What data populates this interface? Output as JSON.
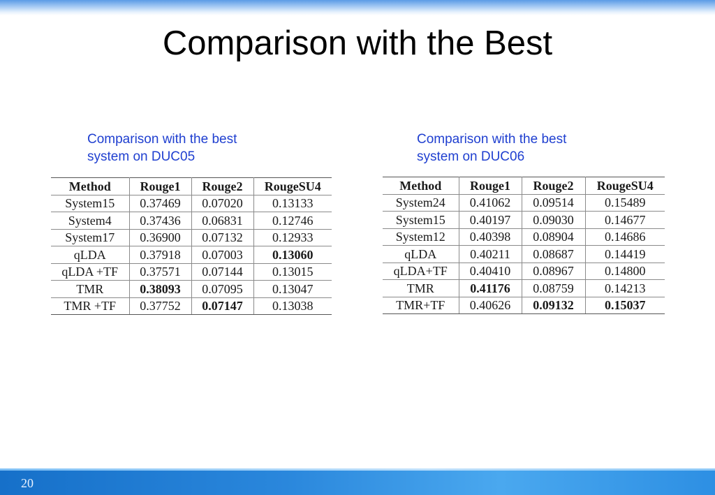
{
  "slide": {
    "title": "Comparison with the Best",
    "page_number": "20"
  },
  "left": {
    "caption_line1": "Comparison with the best",
    "caption_line2": "system on DUC05",
    "headers": [
      "Method",
      "Rouge1",
      "Rouge2",
      "RougeSU4"
    ],
    "rows": [
      [
        "System15",
        "0.37469",
        "0.07020",
        "0.13133"
      ],
      [
        "System4",
        "0.37436",
        "0.06831",
        "0.12746"
      ],
      [
        "System17",
        "0.36900",
        "0.07132",
        "0.12933"
      ],
      [
        "qLDA",
        "0.37918",
        "0.07003",
        "0.13060"
      ],
      [
        "qLDA +TF",
        "0.37571",
        "0.07144",
        "0.13015"
      ],
      [
        "TMR",
        "0.38093",
        "0.07095",
        "0.13047"
      ],
      [
        "TMR +TF",
        "0.37752",
        "0.07147",
        "0.13038"
      ]
    ]
  },
  "right": {
    "caption_line1": "Comparison with the best",
    "caption_line2": "system on DUC06",
    "headers": [
      "Method",
      "Rouge1",
      "Rouge2",
      "RougeSU4"
    ],
    "rows": [
      [
        "System24",
        "0.41062",
        "0.09514",
        "0.15489"
      ],
      [
        "System15",
        "0.40197",
        "0.09030",
        "0.14677"
      ],
      [
        "System12",
        "0.40398",
        "0.08904",
        "0.14686"
      ],
      [
        "qLDA",
        "0.40211",
        "0.08687",
        "0.14419"
      ],
      [
        "qLDA+TF",
        "0.40410",
        "0.08967",
        "0.14800"
      ],
      [
        "TMR",
        "0.41176",
        "0.08759",
        "0.14213"
      ],
      [
        "TMR+TF",
        "0.40626",
        "0.09132",
        "0.15037"
      ]
    ]
  }
}
